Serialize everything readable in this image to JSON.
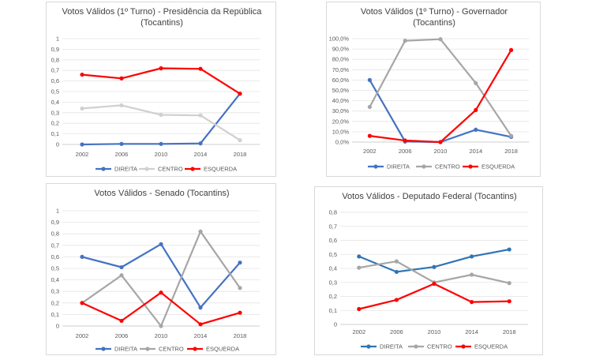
{
  "chart_data": [
    {
      "type": "line",
      "title_lines": [
        "Votos Válidos (1º Turno) - Presidência da República",
        "(Tocantins)"
      ],
      "categories": [
        "2002",
        "2006",
        "2010",
        "2014",
        "2018"
      ],
      "ylim": [
        0,
        1
      ],
      "yticks": [
        0,
        0.1,
        0.2,
        0.3,
        0.4,
        0.5,
        0.6,
        0.7,
        0.8,
        0.9,
        1
      ],
      "ytick_labels": [
        "0",
        "0,1",
        "0,2",
        "0,3",
        "0,4",
        "0,5",
        "0,6",
        "0,7",
        "0,8",
        "0,9",
        "1"
      ],
      "grid": true,
      "legend_position": "bottom",
      "series": [
        {
          "name": "DIREITA",
          "color": "#4472c4",
          "values": [
            0.0,
            0.005,
            0.005,
            0.01,
            0.48
          ]
        },
        {
          "name": "CENTRO",
          "color": "#d0d0d0",
          "values": [
            0.34,
            0.37,
            0.28,
            0.275,
            0.04
          ]
        },
        {
          "name": "ESQUERDA",
          "color": "#ff0000",
          "values": [
            0.66,
            0.625,
            0.72,
            0.715,
            0.48
          ]
        }
      ]
    },
    {
      "type": "line",
      "title_lines": [
        "Votos Válidos (1º Turno) - Governador",
        "(Tocantins)"
      ],
      "categories": [
        "2002",
        "2006",
        "2010",
        "2014",
        "2018"
      ],
      "ylim": [
        0,
        1
      ],
      "yticks": [
        0,
        0.1,
        0.2,
        0.3,
        0.4,
        0.5,
        0.6,
        0.7,
        0.8,
        0.9,
        1
      ],
      "ytick_labels": [
        "0,0%",
        "10,0%",
        "20,0%",
        "30,0%",
        "40,0%",
        "50,0%",
        "60,0%",
        "70,0%",
        "80,0%",
        "90,0%",
        "100,0%"
      ],
      "grid": true,
      "legend_position": "bottom",
      "series": [
        {
          "name": "DIREITA",
          "color": "#4472c4",
          "values": [
            0.6,
            0.005,
            0.0,
            0.12,
            0.05
          ]
        },
        {
          "name": "CENTRO",
          "color": "#a6a6a6",
          "values": [
            0.34,
            0.98,
            0.995,
            0.57,
            0.06
          ]
        },
        {
          "name": "ESQUERDA",
          "color": "#ff0000",
          "values": [
            0.06,
            0.015,
            0.0,
            0.31,
            0.89
          ]
        }
      ]
    },
    {
      "type": "line",
      "title_lines": [
        "Votos Válidos  - Senado (Tocantins)"
      ],
      "categories": [
        "2002",
        "2006",
        "2010",
        "2014",
        "2018"
      ],
      "ylim": [
        0,
        1
      ],
      "yticks": [
        0,
        0.1,
        0.2,
        0.3,
        0.4,
        0.5,
        0.6,
        0.7,
        0.8,
        0.9,
        1
      ],
      "ytick_labels": [
        "0",
        "0,1",
        "0,2",
        "0,3",
        "0,4",
        "0,5",
        "0,6",
        "0,7",
        "0,8",
        "0,9",
        "1"
      ],
      "grid": true,
      "legend_position": "bottom",
      "series": [
        {
          "name": "DIREITA",
          "color": "#4472c4",
          "values": [
            0.6,
            0.51,
            0.71,
            0.16,
            0.55
          ]
        },
        {
          "name": "CENTRO",
          "color": "#a6a6a6",
          "values": [
            0.2,
            0.44,
            0.0,
            0.82,
            0.33
          ]
        },
        {
          "name": "ESQUERDA",
          "color": "#ff0000",
          "values": [
            0.2,
            0.045,
            0.29,
            0.015,
            0.115
          ]
        }
      ]
    },
    {
      "type": "line",
      "title_lines": [
        "Votos Válidos  - Deputado Federal (Tocantins)"
      ],
      "categories": [
        "2002",
        "2006",
        "2010",
        "2014",
        "2018"
      ],
      "ylim": [
        0,
        0.8
      ],
      "yticks": [
        0,
        0.1,
        0.2,
        0.3,
        0.4,
        0.5,
        0.6,
        0.7,
        0.8
      ],
      "ytick_labels": [
        "0",
        "0,1",
        "0,2",
        "0,3",
        "0,4",
        "0,5",
        "0,6",
        "0,7",
        "0,8"
      ],
      "grid": true,
      "legend_position": "bottom",
      "series": [
        {
          "name": "DIREITA",
          "color": "#2e75b6",
          "values": [
            0.485,
            0.375,
            0.41,
            0.485,
            0.535
          ]
        },
        {
          "name": "CENTRO",
          "color": "#a6a6a6",
          "values": [
            0.405,
            0.45,
            0.3,
            0.355,
            0.295
          ]
        },
        {
          "name": "ESQUERDA",
          "color": "#ff0000",
          "values": [
            0.11,
            0.175,
            0.29,
            0.16,
            0.165
          ]
        }
      ]
    }
  ]
}
